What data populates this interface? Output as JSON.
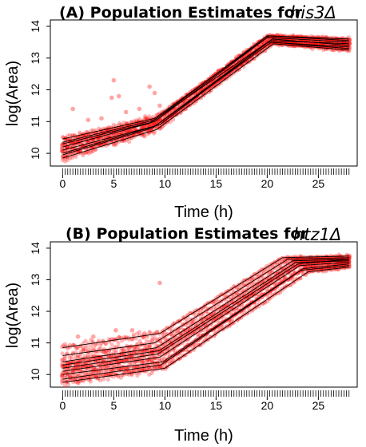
{
  "chart_data": [
    {
      "type": "scatter",
      "panel": "A",
      "title_prefix": "(A)  Population Estimates for ",
      "title_gene": "his3Δ",
      "xlabel": "Time (h)",
      "ylabel": "log(Area)",
      "xlim": [
        -1.2,
        28.8
      ],
      "ylim": [
        9.6,
        14.2
      ],
      "xticks": [
        0,
        5,
        10,
        15,
        20,
        25
      ],
      "yticks": [
        10,
        11,
        12,
        13,
        14
      ],
      "point_color": "#ff0000",
      "line_color": "#000000",
      "lines": [
        {
          "x": [
            0,
            9,
            20.2,
            28
          ],
          "y": [
            10.45,
            11.1,
            13.7,
            13.55
          ]
        },
        {
          "x": [
            0,
            9,
            20.0,
            28
          ],
          "y": [
            10.3,
            11.0,
            13.65,
            13.5
          ]
        },
        {
          "x": [
            0,
            8.5,
            20.3,
            28
          ],
          "y": [
            10.2,
            10.95,
            13.55,
            13.45
          ]
        },
        {
          "x": [
            0,
            9.5,
            20.5,
            28
          ],
          "y": [
            10.1,
            10.9,
            13.6,
            13.4
          ]
        },
        {
          "x": [
            0,
            9,
            20.1,
            28
          ],
          "y": [
            10.0,
            10.85,
            13.5,
            13.35
          ]
        },
        {
          "x": [
            0,
            8.8,
            20.4,
            28
          ],
          "y": [
            9.95,
            10.8,
            13.5,
            13.3
          ]
        },
        {
          "x": [
            0,
            9.2,
            20.6,
            28
          ],
          "y": [
            9.85,
            10.75,
            13.45,
            13.25
          ]
        },
        {
          "x": [
            0,
            9,
            20.0,
            28
          ],
          "y": [
            10.35,
            11.05,
            13.7,
            13.6
          ]
        }
      ],
      "outliers": [
        {
          "x": 5.0,
          "y": 12.3
        },
        {
          "x": 5.5,
          "y": 11.8
        },
        {
          "x": 4.8,
          "y": 11.75
        },
        {
          "x": 8.5,
          "y": 12.1
        },
        {
          "x": 9.0,
          "y": 11.9
        },
        {
          "x": 1.0,
          "y": 11.4
        },
        {
          "x": 6.2,
          "y": 11.3
        },
        {
          "x": 7.5,
          "y": 11.4
        },
        {
          "x": 9.5,
          "y": 11.5
        },
        {
          "x": 2.5,
          "y": 11.05
        },
        {
          "x": 3.8,
          "y": 11.1
        }
      ]
    },
    {
      "type": "scatter",
      "panel": "B",
      "title_prefix": "(B)  Population Estimates for ",
      "title_gene": "htz1Δ",
      "xlabel": "Time (h)",
      "ylabel": "log(Area)",
      "xlim": [
        -1.2,
        28.8
      ],
      "ylim": [
        9.6,
        14.2
      ],
      "xticks": [
        0,
        5,
        10,
        15,
        20,
        25
      ],
      "yticks": [
        10,
        11,
        12,
        13,
        14
      ],
      "point_color": "#ff0000",
      "line_color": "#000000",
      "lines": [
        {
          "x": [
            0,
            9.5,
            21.5,
            28
          ],
          "y": [
            10.85,
            11.3,
            13.7,
            13.75
          ]
        },
        {
          "x": [
            0,
            9.0,
            22.0,
            28
          ],
          "y": [
            10.6,
            11.0,
            13.65,
            13.7
          ]
        },
        {
          "x": [
            0,
            9.2,
            22.5,
            28
          ],
          "y": [
            10.4,
            10.85,
            13.6,
            13.65
          ]
        },
        {
          "x": [
            0,
            9.4,
            22.8,
            28
          ],
          "y": [
            10.3,
            10.75,
            13.55,
            13.6
          ]
        },
        {
          "x": [
            0,
            9.3,
            23.0,
            28
          ],
          "y": [
            10.2,
            10.65,
            13.5,
            13.65
          ]
        },
        {
          "x": [
            0,
            9.5,
            23.2,
            28
          ],
          "y": [
            10.1,
            10.55,
            13.45,
            13.55
          ]
        },
        {
          "x": [
            0,
            9.8,
            23.5,
            28
          ],
          "y": [
            10.0,
            10.4,
            13.35,
            13.5
          ]
        },
        {
          "x": [
            0,
            9.6,
            23.3,
            28
          ],
          "y": [
            9.85,
            10.3,
            13.3,
            13.45
          ]
        },
        {
          "x": [
            0,
            10.0,
            24.0,
            28
          ],
          "y": [
            9.75,
            10.2,
            13.25,
            13.4
          ]
        }
      ],
      "outliers": [
        {
          "x": 9.5,
          "y": 12.9
        },
        {
          "x": 5.2,
          "y": 11.4
        },
        {
          "x": 6.8,
          "y": 11.4
        },
        {
          "x": 1.5,
          "y": 11.2
        },
        {
          "x": 3.0,
          "y": 11.2
        },
        {
          "x": 8.0,
          "y": 11.3
        }
      ]
    }
  ]
}
